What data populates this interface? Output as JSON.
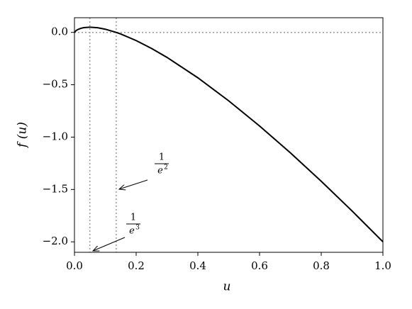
{
  "chart_data": {
    "type": "line",
    "xlabel": "u",
    "ylabel": "f (u)",
    "x": [
      0,
      0.005,
      0.01,
      0.02,
      0.03,
      0.05,
      0.075,
      0.1,
      0.135,
      0.15,
      0.2,
      0.25,
      0.3,
      0.4,
      0.5,
      0.6,
      0.7,
      0.8,
      0.9,
      1.0
    ],
    "series": [
      {
        "color": "#000000",
        "values": [
          0,
          0.0165,
          0.0261,
          0.0382,
          0.0452,
          0.0498,
          0.0443,
          0.0303,
          0.0003,
          -0.0155,
          -0.0781,
          -0.1534,
          -0.2388,
          -0.4335,
          -0.6534,
          -0.8935,
          -1.1503,
          -1.4215,
          -1.7052,
          -2.0
        ]
      }
    ],
    "xlim": [
      0,
      1
    ],
    "ylim": [
      -2.1,
      0.14
    ],
    "xticks": [
      {
        "value": 0,
        "label": "0.0"
      },
      {
        "value": 0.2,
        "label": "0.2"
      },
      {
        "value": 0.4,
        "label": "0.4"
      },
      {
        "value": 0.6,
        "label": "0.6"
      },
      {
        "value": 0.8,
        "label": "0.8"
      },
      {
        "value": 1,
        "label": "1.0"
      }
    ],
    "yticks": [
      {
        "value": -2,
        "label": "−2.0"
      },
      {
        "value": -1.5,
        "label": "−1.5"
      },
      {
        "value": -1,
        "label": "−1.0"
      },
      {
        "value": -0.5,
        "label": "−0.5"
      },
      {
        "value": 0,
        "label": "0.0"
      }
    ],
    "reference_lines": {
      "color": "#999999",
      "x": [
        0.0498,
        0.1353
      ],
      "y": [
        0
      ]
    },
    "annotations": [
      {
        "numerator": "1",
        "base": "e",
        "exponent": "2"
      },
      {
        "numerator": "1",
        "base": "e",
        "exponent": "3"
      }
    ]
  }
}
